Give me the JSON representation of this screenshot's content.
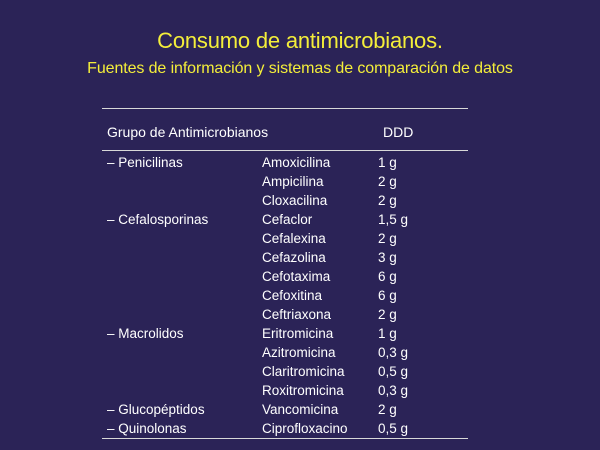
{
  "slide": {
    "title": "Consumo de antimicrobianos.",
    "subtitle": "Fuentes de información y sistemas de comparación de datos"
  },
  "table": {
    "header_group": "Grupo de Antimicrobianos",
    "header_ddd": "DDD",
    "groups": [
      "– Penicilinas",
      "",
      "",
      "– Cefalosporinas",
      "",
      "",
      "",
      "",
      "",
      "– Macrolidos",
      "",
      "",
      "",
      "– Glucopéptidos",
      "– Quinolonas"
    ],
    "drugs": [
      "Amoxicilina",
      "Ampicilina",
      "Cloxacilina",
      "Cefaclor",
      "Cefalexina",
      "Cefazolina",
      "Cefotaxima",
      "Cefoxitina",
      "Ceftriaxona",
      "Eritromicina",
      "Azitromicina",
      "Claritromicina",
      "Roxitromicina",
      "Vancomicina",
      "Ciprofloxacino"
    ],
    "doses": [
      "1 g",
      "2 g",
      "2 g",
      "1,5 g",
      "2 g",
      "3 g",
      "6 g",
      "6 g",
      "2 g",
      "1 g",
      "0,3 g",
      "0,5 g",
      "0,3 g",
      "2 g",
      "0,5 g"
    ]
  }
}
